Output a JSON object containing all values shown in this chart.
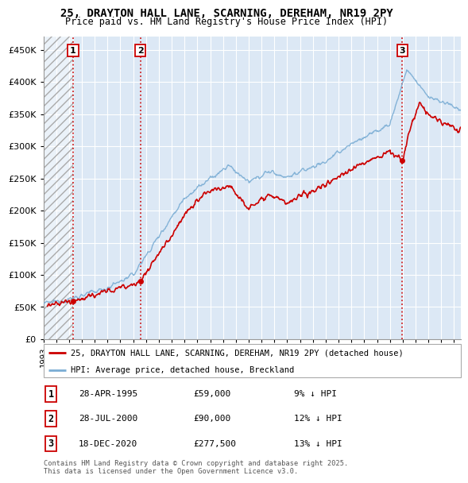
{
  "title1": "25, DRAYTON HALL LANE, SCARNING, DEREHAM, NR19 2PY",
  "title2": "Price paid vs. HM Land Registry's House Price Index (HPI)",
  "ylim": [
    0,
    470000
  ],
  "yticks": [
    0,
    50000,
    100000,
    150000,
    200000,
    250000,
    300000,
    350000,
    400000,
    450000
  ],
  "sale_prices": [
    59000,
    90000,
    277500
  ],
  "sale_labels": [
    "1",
    "2",
    "3"
  ],
  "sale_pct": [
    "9% ↓ HPI",
    "12% ↓ HPI",
    "13% ↓ HPI"
  ],
  "sale_date_labels": [
    "28-APR-1995",
    "28-JUL-2000",
    "18-DEC-2020"
  ],
  "sale_price_labels": [
    "£59,000",
    "£90,000",
    "£277,500"
  ],
  "sale_year_nums": [
    1995.32,
    2000.57,
    2020.96
  ],
  "legend_entries": [
    "25, DRAYTON HALL LANE, SCARNING, DEREHAM, NR19 2PY (detached house)",
    "HPI: Average price, detached house, Breckland"
  ],
  "footer": "Contains HM Land Registry data © Crown copyright and database right 2025.\nThis data is licensed under the Open Government Licence v3.0.",
  "line_color_red": "#cc0000",
  "line_color_blue": "#7aadd4",
  "vline_color": "#cc0000",
  "background_color": "#dce8f5",
  "grid_color": "#ffffff",
  "xlim_start": 1993.0,
  "xlim_end": 2025.5
}
